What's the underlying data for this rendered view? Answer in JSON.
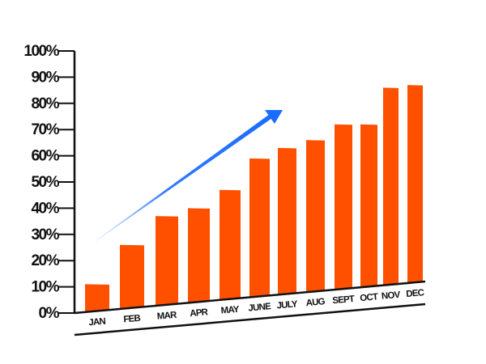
{
  "chart_data": {
    "type": "bar",
    "title": "",
    "xlabel": "",
    "ylabel": "",
    "categories": [
      "JAN",
      "FEB",
      "MAR",
      "APR",
      "MAY",
      "JUNE",
      "JULY",
      "AUG",
      "SEPT",
      "OCT",
      "NOV",
      "DEC"
    ],
    "values": [
      11,
      26,
      37,
      40,
      47,
      59,
      63,
      66,
      72,
      72,
      86,
      87
    ],
    "ylim": [
      0,
      100
    ],
    "yticks": [
      "0%",
      "10%",
      "20%",
      "30%",
      "40%",
      "50%",
      "60%",
      "70%",
      "80%",
      "90%",
      "100%"
    ],
    "grid": false,
    "legend": "none",
    "annotations": [
      "upward trend arrow"
    ],
    "colors": {
      "bar": "#ff5000",
      "arrow": "#1a6cff",
      "axis": "#111111"
    }
  }
}
